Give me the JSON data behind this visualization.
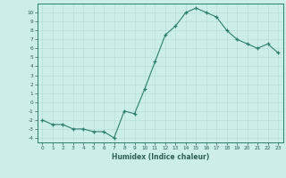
{
  "x": [
    0,
    1,
    2,
    3,
    4,
    5,
    6,
    7,
    8,
    9,
    10,
    11,
    12,
    13,
    14,
    15,
    16,
    17,
    18,
    19,
    20,
    21,
    22,
    23
  ],
  "y": [
    -2.0,
    -2.5,
    -2.5,
    -3.0,
    -3.0,
    -3.3,
    -3.3,
    -4.0,
    -1.0,
    -1.3,
    1.5,
    4.5,
    7.5,
    8.5,
    10.0,
    10.5,
    10.0,
    9.5,
    8.0,
    7.0,
    6.5,
    6.0,
    6.5,
    5.5
  ],
  "xlabel": "Humidex (Indice chaleur)",
  "line_color": "#2e7d6e",
  "marker_color": "#2e7d6e",
  "bg_color": "#cceee8",
  "grid_color": "#b8ddd7",
  "axis_color": "#2e7d6e",
  "text_color": "#2e5f58",
  "ylim": [
    -4.5,
    11.0
  ],
  "xlim": [
    -0.5,
    23.5
  ],
  "yticks": [
    -4,
    -3,
    -2,
    -1,
    0,
    1,
    2,
    3,
    4,
    5,
    6,
    7,
    8,
    9,
    10
  ],
  "xticks": [
    0,
    1,
    2,
    3,
    4,
    5,
    6,
    7,
    8,
    9,
    10,
    11,
    12,
    13,
    14,
    15,
    16,
    17,
    18,
    19,
    20,
    21,
    22,
    23
  ]
}
